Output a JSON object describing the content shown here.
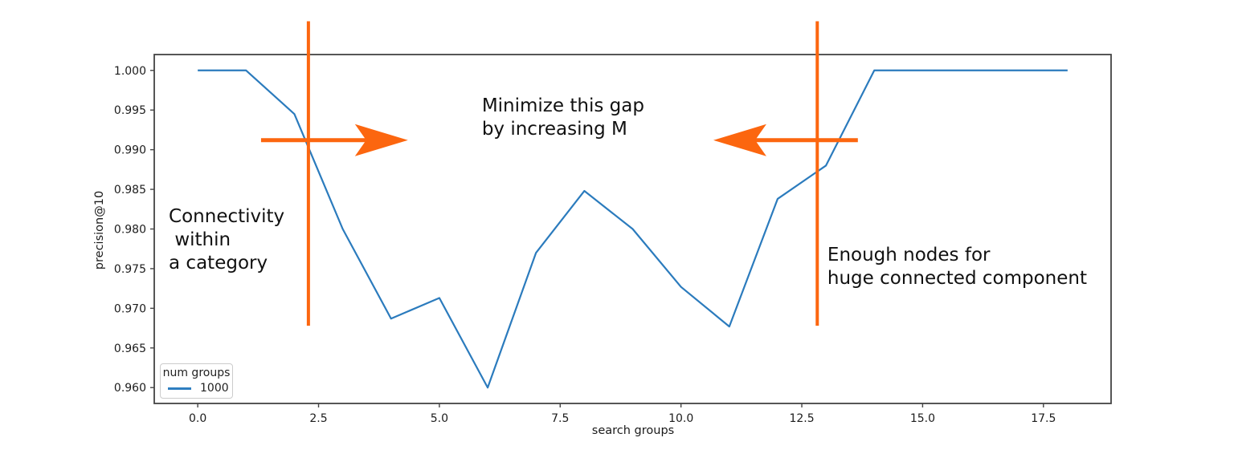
{
  "chart_data": {
    "type": "line",
    "title": "",
    "xlabel": "search groups",
    "ylabel": "precision@10",
    "xlim": [
      -0.9,
      18.9
    ],
    "ylim": [
      0.958,
      1.002
    ],
    "grid": false,
    "x_ticks": [
      0.0,
      2.5,
      5.0,
      7.5,
      10.0,
      12.5,
      15.0,
      17.5
    ],
    "x_tick_labels": [
      "0.0",
      "2.5",
      "5.0",
      "7.5",
      "10.0",
      "12.5",
      "15.0",
      "17.5"
    ],
    "y_ticks": [
      0.96,
      0.965,
      0.97,
      0.975,
      0.98,
      0.985,
      0.99,
      0.995,
      1.0
    ],
    "y_tick_labels": [
      "0.960",
      "0.965",
      "0.970",
      "0.975",
      "0.980",
      "0.985",
      "0.990",
      "0.995",
      "1.000"
    ],
    "legend": {
      "title": "num groups",
      "position": "lower left",
      "entries": [
        {
          "label": "1000",
          "color": "#1f77b4"
        }
      ]
    },
    "series": [
      {
        "name": "1000",
        "color": "#2b7bbd",
        "x": [
          0,
          1,
          2,
          3,
          4,
          5,
          6,
          7,
          8,
          9,
          10,
          11,
          12,
          13,
          14,
          15,
          16,
          17,
          18
        ],
        "values": [
          1.0,
          1.0,
          0.9945,
          0.98,
          0.9687,
          0.9713,
          0.96,
          0.977,
          0.9848,
          0.98,
          0.9727,
          0.9677,
          0.9838,
          0.988,
          1.0,
          1.0,
          1.0,
          1.0,
          1.0
        ]
      }
    ],
    "annotations": {
      "color": "#fc660f",
      "vlines": [
        {
          "x": 2.29,
          "y1": 0.9678,
          "y2": 1.0062
        },
        {
          "x": 12.82,
          "y1": 0.9678,
          "y2": 1.0062
        }
      ],
      "arrows": [
        {
          "y": 0.9912,
          "tail_x": 1.31,
          "tip_x": 4.35,
          "direction": "right"
        },
        {
          "y": 0.9912,
          "tail_x": 13.66,
          "tip_x": 10.67,
          "direction": "left"
        }
      ],
      "texts": [
        {
          "text": "Minimize this gap\nby increasing M",
          "x": 5.88,
          "y": 0.9969
        },
        {
          "text": "Connectivity\n within\na category",
          "x": -0.6,
          "y": 0.983
        },
        {
          "text": "Enough nodes for\nhuge connected component",
          "x": 13.03,
          "y": 0.9781
        }
      ]
    }
  }
}
